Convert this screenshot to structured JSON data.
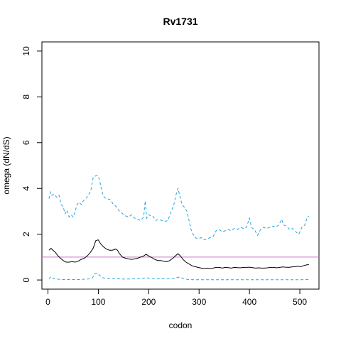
{
  "chart_data": {
    "type": "line",
    "title": "Rv1731",
    "xlabel": "codon",
    "ylabel": "omega (dN/dS)",
    "xlim": [
      -12,
      538
    ],
    "ylim": [
      -0.4,
      10.4
    ],
    "x_ticks": [
      0,
      100,
      200,
      300,
      400,
      500
    ],
    "y_ticks": [
      0,
      2,
      4,
      6,
      8,
      10
    ],
    "reference_line": {
      "y": 1,
      "color": "#c678c6"
    },
    "series": [
      {
        "role": "upper",
        "color": "#29a3e0",
        "dash": true,
        "points": [
          [
            2,
            3.55
          ],
          [
            5,
            3.85
          ],
          [
            8,
            3.7
          ],
          [
            12,
            3.75
          ],
          [
            18,
            3.6
          ],
          [
            22,
            3.7
          ],
          [
            26,
            3.3
          ],
          [
            30,
            3.2
          ],
          [
            34,
            2.9
          ],
          [
            38,
            3.05
          ],
          [
            42,
            2.75
          ],
          [
            46,
            2.85
          ],
          [
            50,
            2.75
          ],
          [
            54,
            3.0
          ],
          [
            58,
            3.3
          ],
          [
            62,
            3.4
          ],
          [
            66,
            3.3
          ],
          [
            70,
            3.45
          ],
          [
            75,
            3.55
          ],
          [
            80,
            3.7
          ],
          [
            85,
            3.9
          ],
          [
            90,
            4.5
          ],
          [
            95,
            4.55
          ],
          [
            100,
            4.55
          ],
          [
            104,
            4.2
          ],
          [
            108,
            3.8
          ],
          [
            112,
            3.6
          ],
          [
            118,
            3.55
          ],
          [
            124,
            3.5
          ],
          [
            130,
            3.3
          ],
          [
            136,
            3.2
          ],
          [
            142,
            3.0
          ],
          [
            148,
            2.9
          ],
          [
            154,
            2.8
          ],
          [
            160,
            2.75
          ],
          [
            166,
            2.85
          ],
          [
            172,
            2.7
          ],
          [
            178,
            2.65
          ],
          [
            184,
            2.6
          ],
          [
            190,
            2.75
          ],
          [
            193,
            3.45
          ],
          [
            196,
            2.7
          ],
          [
            200,
            2.85
          ],
          [
            204,
            2.8
          ],
          [
            208,
            2.8
          ],
          [
            214,
            2.6
          ],
          [
            220,
            2.65
          ],
          [
            226,
            2.6
          ],
          [
            232,
            2.55
          ],
          [
            238,
            2.6
          ],
          [
            244,
            2.95
          ],
          [
            250,
            3.3
          ],
          [
            254,
            3.7
          ],
          [
            258,
            4.0
          ],
          [
            262,
            3.65
          ],
          [
            266,
            3.3
          ],
          [
            270,
            3.2
          ],
          [
            276,
            3.0
          ],
          [
            280,
            2.6
          ],
          [
            284,
            2.2
          ],
          [
            288,
            2.0
          ],
          [
            292,
            1.85
          ],
          [
            298,
            1.8
          ],
          [
            304,
            1.85
          ],
          [
            310,
            1.75
          ],
          [
            316,
            1.8
          ],
          [
            322,
            1.85
          ],
          [
            328,
            1.9
          ],
          [
            334,
            2.15
          ],
          [
            340,
            2.2
          ],
          [
            346,
            2.1
          ],
          [
            352,
            2.15
          ],
          [
            358,
            2.2
          ],
          [
            364,
            2.15
          ],
          [
            370,
            2.25
          ],
          [
            376,
            2.2
          ],
          [
            382,
            2.3
          ],
          [
            388,
            2.25
          ],
          [
            394,
            2.3
          ],
          [
            400,
            2.7
          ],
          [
            404,
            2.3
          ],
          [
            410,
            2.2
          ],
          [
            416,
            1.95
          ],
          [
            422,
            2.2
          ],
          [
            428,
            2.3
          ],
          [
            434,
            2.25
          ],
          [
            440,
            2.3
          ],
          [
            446,
            2.35
          ],
          [
            452,
            2.3
          ],
          [
            458,
            2.4
          ],
          [
            464,
            2.65
          ],
          [
            468,
            2.4
          ],
          [
            474,
            2.35
          ],
          [
            480,
            2.2
          ],
          [
            486,
            2.25
          ],
          [
            492,
            2.1
          ],
          [
            498,
            2.0
          ],
          [
            504,
            2.3
          ],
          [
            510,
            2.4
          ],
          [
            514,
            2.7
          ],
          [
            518,
            2.8
          ]
        ]
      },
      {
        "role": "mean",
        "color": "#000000",
        "dash": false,
        "points": [
          [
            2,
            1.3
          ],
          [
            6,
            1.38
          ],
          [
            10,
            1.3
          ],
          [
            15,
            1.2
          ],
          [
            20,
            1.05
          ],
          [
            25,
            0.95
          ],
          [
            30,
            0.85
          ],
          [
            36,
            0.78
          ],
          [
            42,
            0.78
          ],
          [
            48,
            0.8
          ],
          [
            54,
            0.78
          ],
          [
            60,
            0.82
          ],
          [
            66,
            0.9
          ],
          [
            72,
            0.95
          ],
          [
            78,
            1.05
          ],
          [
            84,
            1.2
          ],
          [
            90,
            1.4
          ],
          [
            95,
            1.72
          ],
          [
            100,
            1.75
          ],
          [
            104,
            1.6
          ],
          [
            110,
            1.45
          ],
          [
            116,
            1.35
          ],
          [
            122,
            1.3
          ],
          [
            128,
            1.3
          ],
          [
            134,
            1.35
          ],
          [
            138,
            1.3
          ],
          [
            142,
            1.15
          ],
          [
            148,
            1.0
          ],
          [
            154,
            0.95
          ],
          [
            160,
            0.92
          ],
          [
            166,
            0.9
          ],
          [
            172,
            0.92
          ],
          [
            178,
            0.95
          ],
          [
            184,
            1.0
          ],
          [
            190,
            1.05
          ],
          [
            195,
            1.12
          ],
          [
            200,
            1.05
          ],
          [
            206,
            0.98
          ],
          [
            212,
            0.9
          ],
          [
            218,
            0.85
          ],
          [
            224,
            0.85
          ],
          [
            230,
            0.82
          ],
          [
            236,
            0.8
          ],
          [
            242,
            0.85
          ],
          [
            248,
            0.95
          ],
          [
            253,
            1.05
          ],
          [
            258,
            1.15
          ],
          [
            263,
            1.05
          ],
          [
            268,
            0.9
          ],
          [
            274,
            0.78
          ],
          [
            280,
            0.7
          ],
          [
            286,
            0.62
          ],
          [
            292,
            0.58
          ],
          [
            298,
            0.55
          ],
          [
            304,
            0.52
          ],
          [
            310,
            0.5
          ],
          [
            316,
            0.52
          ],
          [
            322,
            0.5
          ],
          [
            328,
            0.52
          ],
          [
            334,
            0.55
          ],
          [
            340,
            0.55
          ],
          [
            346,
            0.52
          ],
          [
            352,
            0.55
          ],
          [
            358,
            0.54
          ],
          [
            364,
            0.52
          ],
          [
            370,
            0.55
          ],
          [
            376,
            0.54
          ],
          [
            382,
            0.53
          ],
          [
            388,
            0.55
          ],
          [
            394,
            0.55
          ],
          [
            400,
            0.56
          ],
          [
            406,
            0.54
          ],
          [
            412,
            0.52
          ],
          [
            418,
            0.53
          ],
          [
            424,
            0.52
          ],
          [
            430,
            0.52
          ],
          [
            436,
            0.53
          ],
          [
            442,
            0.55
          ],
          [
            448,
            0.55
          ],
          [
            454,
            0.53
          ],
          [
            460,
            0.55
          ],
          [
            466,
            0.57
          ],
          [
            472,
            0.56
          ],
          [
            478,
            0.55
          ],
          [
            484,
            0.57
          ],
          [
            490,
            0.58
          ],
          [
            496,
            0.6
          ],
          [
            502,
            0.58
          ],
          [
            508,
            0.63
          ],
          [
            514,
            0.66
          ],
          [
            518,
            0.67
          ]
        ]
      },
      {
        "role": "lower",
        "color": "#29a3e0",
        "dash": true,
        "points": [
          [
            2,
            0.05
          ],
          [
            6,
            0.15
          ],
          [
            10,
            0.08
          ],
          [
            16,
            0.04
          ],
          [
            22,
            0.03
          ],
          [
            30,
            0.02
          ],
          [
            40,
            0.02
          ],
          [
            50,
            0.02
          ],
          [
            60,
            0.02
          ],
          [
            70,
            0.03
          ],
          [
            80,
            0.04
          ],
          [
            88,
            0.08
          ],
          [
            93,
            0.28
          ],
          [
            98,
            0.3
          ],
          [
            103,
            0.2
          ],
          [
            108,
            0.1
          ],
          [
            116,
            0.07
          ],
          [
            124,
            0.06
          ],
          [
            132,
            0.06
          ],
          [
            140,
            0.05
          ],
          [
            150,
            0.04
          ],
          [
            160,
            0.04
          ],
          [
            170,
            0.05
          ],
          [
            180,
            0.06
          ],
          [
            188,
            0.07
          ],
          [
            194,
            0.1
          ],
          [
            200,
            0.08
          ],
          [
            210,
            0.06
          ],
          [
            220,
            0.05
          ],
          [
            230,
            0.05
          ],
          [
            240,
            0.06
          ],
          [
            248,
            0.07
          ],
          [
            255,
            0.1
          ],
          [
            260,
            0.12
          ],
          [
            266,
            0.08
          ],
          [
            272,
            0.04
          ],
          [
            280,
            0.02
          ],
          [
            290,
            0.01
          ],
          [
            300,
            0.01
          ],
          [
            320,
            0.01
          ],
          [
            340,
            0.01
          ],
          [
            360,
            0.01
          ],
          [
            380,
            0.01
          ],
          [
            400,
            0.01
          ],
          [
            420,
            0.01
          ],
          [
            440,
            0.01
          ],
          [
            460,
            0.01
          ],
          [
            480,
            0.01
          ],
          [
            500,
            0.01
          ],
          [
            518,
            0.02
          ]
        ]
      }
    ]
  }
}
